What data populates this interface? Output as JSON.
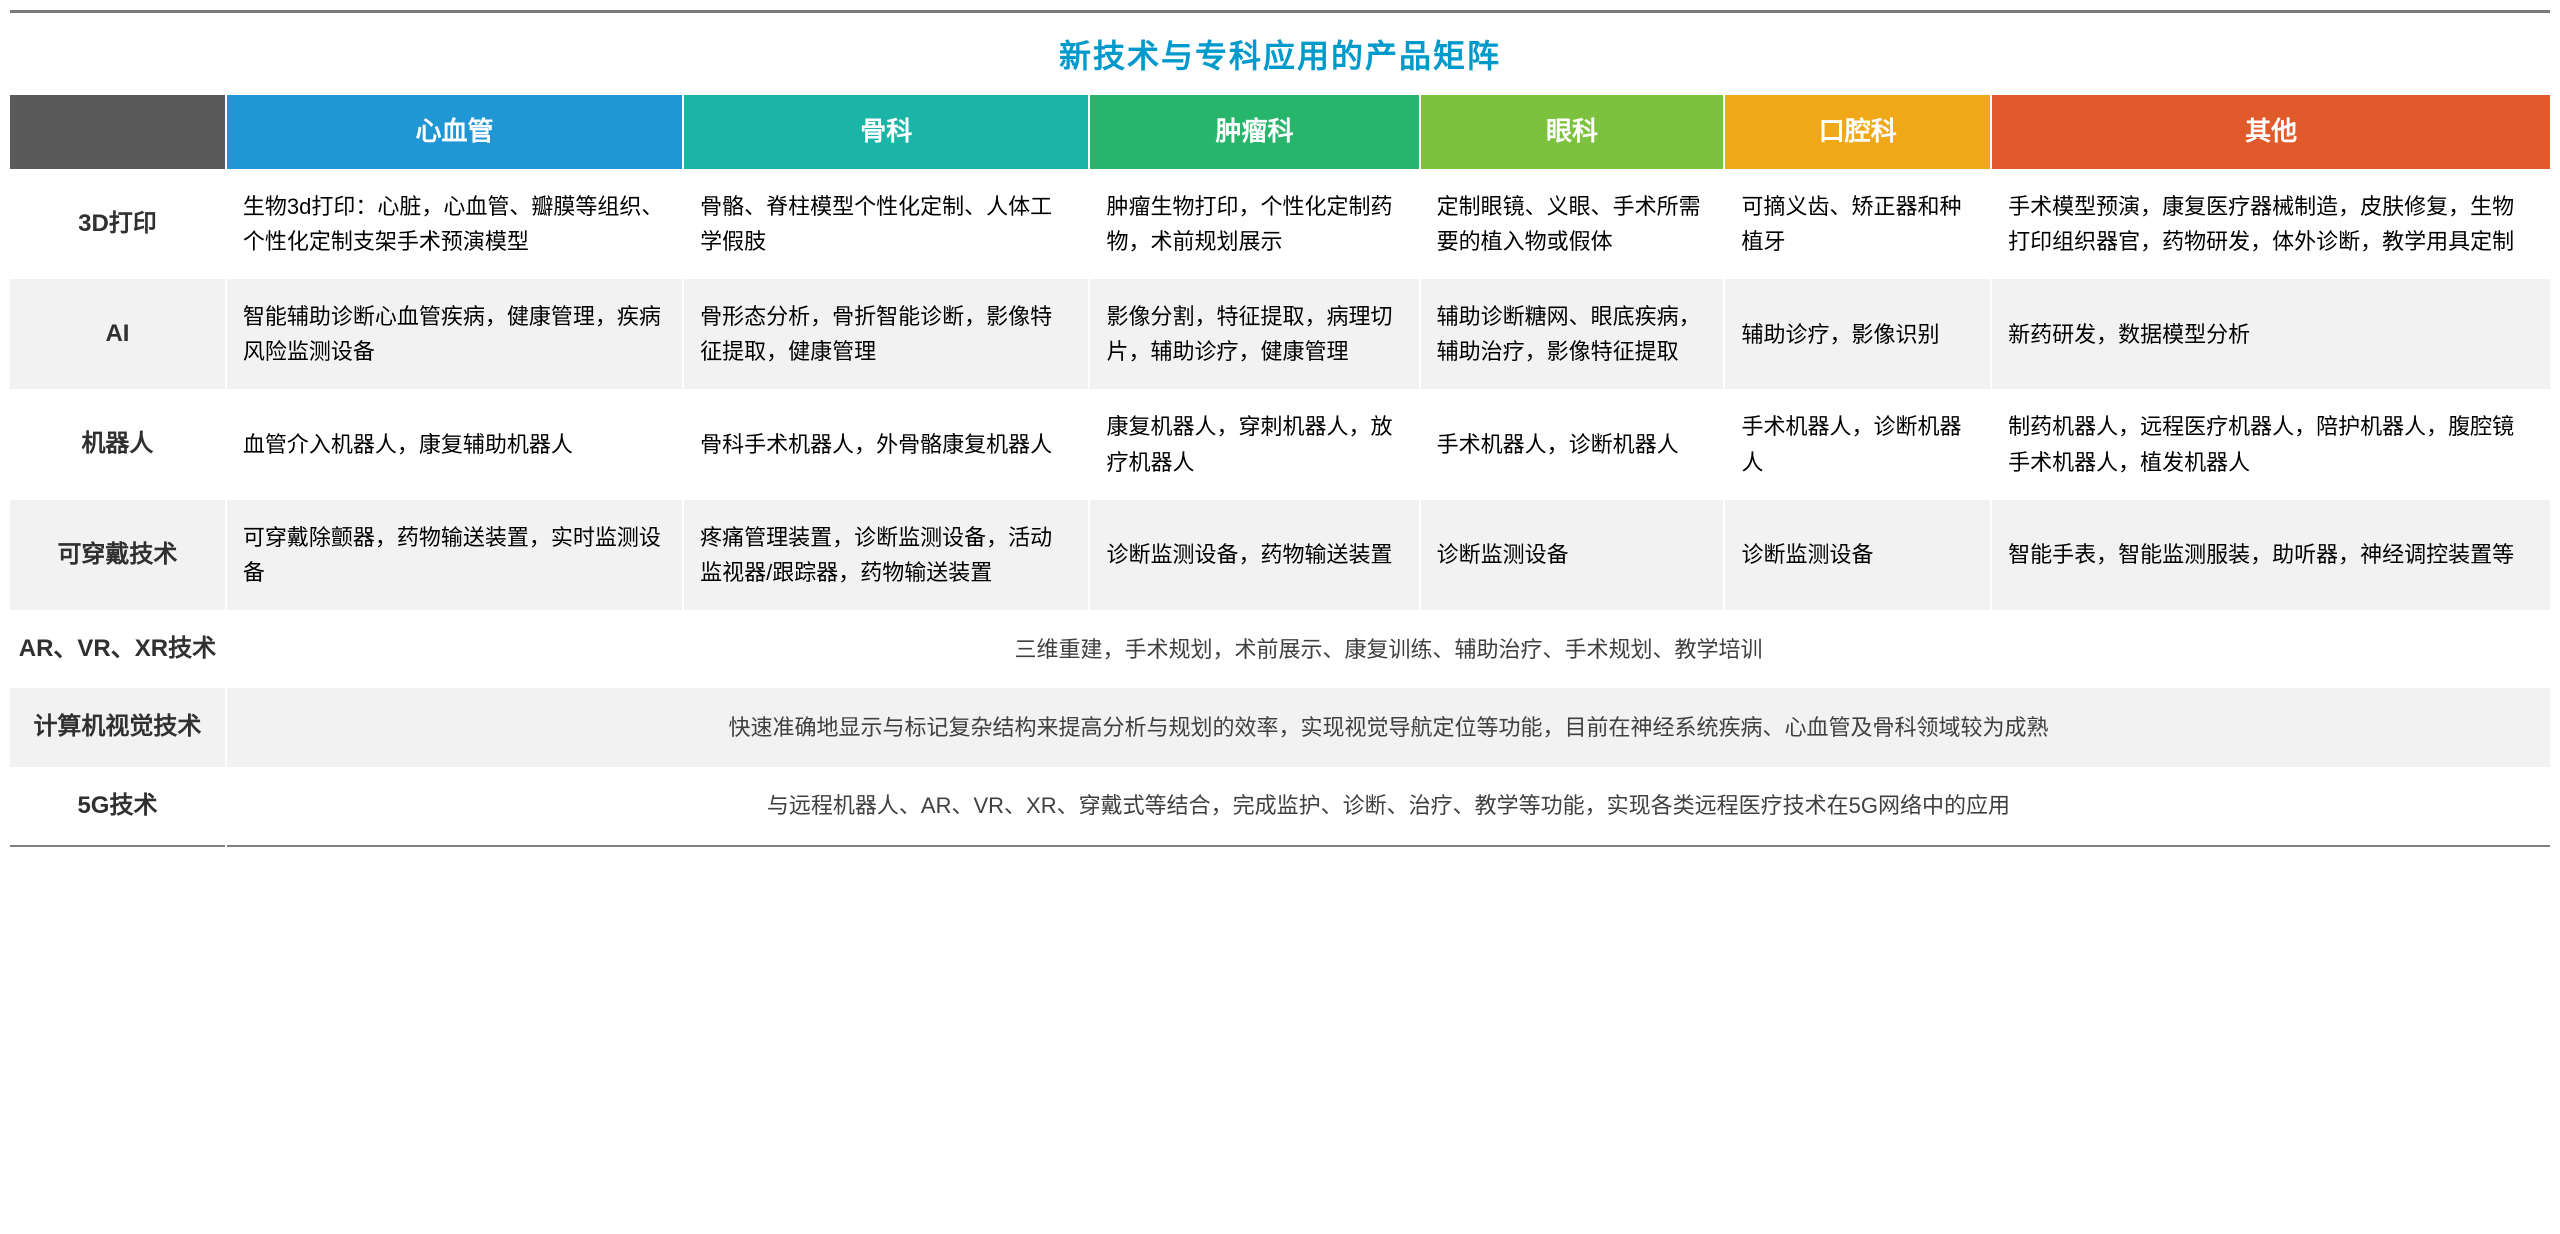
{
  "title": "新技术与专科应用的产品矩阵",
  "title_color": "#0099cc",
  "header_corner_bg": "#595959",
  "columns": [
    {
      "label": "心血管",
      "bg": "#2196d4"
    },
    {
      "label": "骨科",
      "bg": "#1bb5a8"
    },
    {
      "label": "肿瘤科",
      "bg": "#26b56a"
    },
    {
      "label": "眼科",
      "bg": "#7cc23e"
    },
    {
      "label": "口腔科",
      "bg": "#f0a818"
    },
    {
      "label": "其他",
      "bg": "#e05a2b"
    }
  ],
  "rows": [
    {
      "label": "3D打印",
      "cells": [
        "生物3d打印：心脏，心血管、瓣膜等组织、个性化定制支架手术预演模型",
        "骨骼、脊柱模型个性化定制、人体工学假肢",
        "肿瘤生物打印，个性化定制药物，术前规划展示",
        "定制眼镜、义眼、手术所需要的植入物或假体",
        "可摘义齿、矫正器和种植牙",
        "手术模型预演，康复医疗器械制造，皮肤修复，生物打印组织器官，药物研发，体外诊断，教学用具定制"
      ]
    },
    {
      "label": "AI",
      "cells": [
        "智能辅助诊断心血管疾病，健康管理，疾病风险监测设备",
        "骨形态分析，骨折智能诊断，影像特征提取，健康管理",
        "影像分割，特征提取，病理切片，辅助诊疗，健康管理",
        "辅助诊断糖网、眼底疾病，辅助治疗，影像特征提取",
        "辅助诊疗，影像识别",
        "新药研发，数据模型分析"
      ]
    },
    {
      "label": "机器人",
      "cells": [
        "血管介入机器人，康复辅助机器人",
        "骨科手术机器人，外骨骼康复机器人",
        "康复机器人，穿刺机器人，放疗机器人",
        "手术机器人，诊断机器人",
        "手术机器人，诊断机器人",
        "制药机器人，远程医疗机器人，陪护机器人，腹腔镜手术机器人，植发机器人"
      ]
    },
    {
      "label": "可穿戴技术",
      "cells": [
        "可穿戴除颤器，药物输送装置，实时监测设备",
        "疼痛管理装置，诊断监测设备，活动监视器/跟踪器，药物输送装置",
        "诊断监测设备，药物输送装置",
        "诊断监测设备",
        "诊断监测设备",
        "智能手表，智能监测服装，助听器，神经调控装置等"
      ]
    }
  ],
  "merged_rows": [
    {
      "label": "AR、VR、XR技术",
      "text": "三维重建，手术规划，术前展示、康复训练、辅助治疗、手术规划、教学培训"
    },
    {
      "label": "计算机视觉技术",
      "text": "快速准确地显示与标记复杂结构来提高分析与规划的效率，实现视觉导航定位等功能，目前在神经系统疾病、心血管及骨科领域较为成熟"
    },
    {
      "label": "5G技术",
      "text": "与远程机器人、AR、VR、XR、穿戴式等结合，完成监护、诊断、治疗、教学等功能，实现各类远程医疗技术在5G网络中的应用"
    }
  ]
}
